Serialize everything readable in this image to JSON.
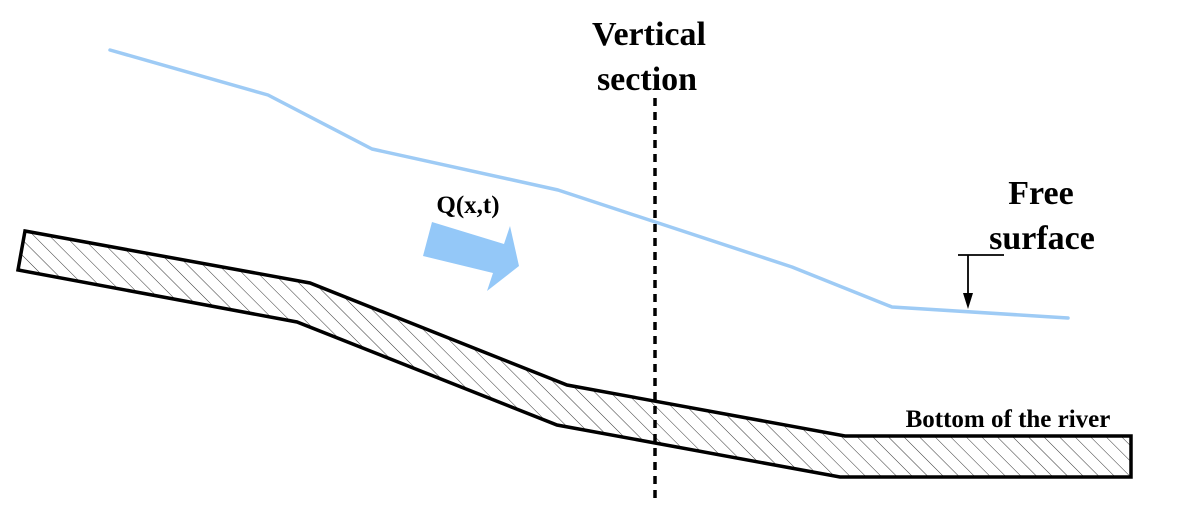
{
  "labels": {
    "vertical_section_line1": "Vertical",
    "vertical_section_line2": "section",
    "free_surface_line1": "Free",
    "free_surface_line2": "surface",
    "flow": "Q(x,t)",
    "river_bottom": "Bottom of the river"
  },
  "colors": {
    "free_surface_line": "#9ecbf5",
    "flow_arrow": "#94c8f8",
    "outline": "#000000",
    "hatch": "#000000",
    "background": "#ffffff"
  }
}
